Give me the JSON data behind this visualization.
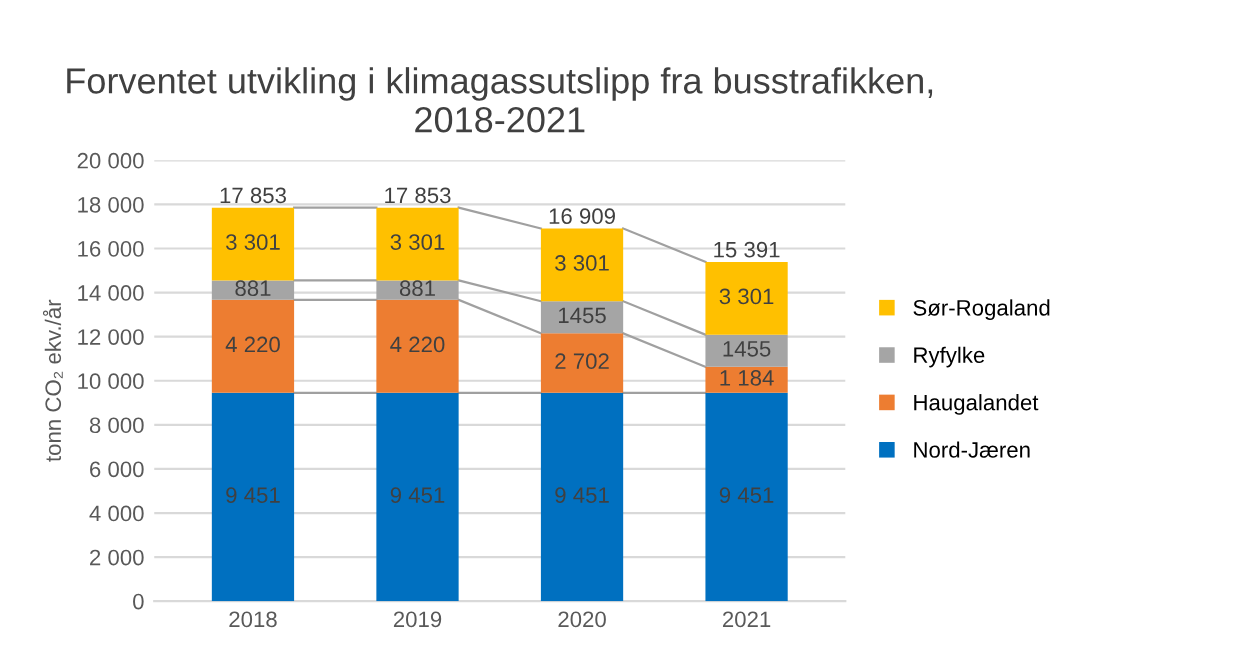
{
  "chart_data": {
    "type": "bar",
    "stacked": true,
    "title": "Forventet utvikling i klimagassutslipp fra busstrafikken, 2018-2021",
    "ylabel": "tonn CO₂ ekv./år",
    "categories": [
      "2018",
      "2019",
      "2020",
      "2021"
    ],
    "series": [
      {
        "name": "Nord-Jæren",
        "color": "#0070c0",
        "values": [
          9451,
          9451,
          9451,
          9451
        ],
        "value_labels": [
          "9 451",
          "9 451",
          "9 451",
          "9 451"
        ]
      },
      {
        "name": "Haugalandet",
        "color": "#ed7d31",
        "values": [
          4220,
          4220,
          2702,
          1184
        ],
        "value_labels": [
          "4 220",
          "4 220",
          "2 702",
          "1 184"
        ]
      },
      {
        "name": "Ryfylke",
        "color": "#a5a5a5",
        "values": [
          881,
          881,
          1455,
          1455
        ],
        "value_labels": [
          "881",
          "881",
          "1455",
          "1455"
        ]
      },
      {
        "name": "Sør-Rogaland",
        "color": "#ffc000",
        "values": [
          3301,
          3301,
          3301,
          3301
        ],
        "value_labels": [
          "3 301",
          "3 301",
          "3 301",
          "3 301"
        ]
      }
    ],
    "totals": [
      "17 853",
      "17 853",
      "16 909",
      "15 391"
    ],
    "ylim": [
      0,
      20000
    ],
    "yticks": [
      0,
      {
        "value": 2000,
        "label": "2 000"
      },
      {
        "value": 4000,
        "label": "4 000"
      },
      {
        "value": 6000,
        "label": "6 000"
      },
      {
        "value": 8000,
        "label": "8 000"
      },
      {
        "value": 10000,
        "label": "10 000"
      },
      {
        "value": 12000,
        "label": "12 000"
      },
      {
        "value": 14000,
        "label": "14 000"
      },
      {
        "value": 16000,
        "label": "16 000"
      },
      {
        "value": 18000,
        "label": "18 000"
      },
      {
        "value": 20000,
        "label": "20 000"
      }
    ],
    "grid": "y",
    "legend": "right"
  }
}
